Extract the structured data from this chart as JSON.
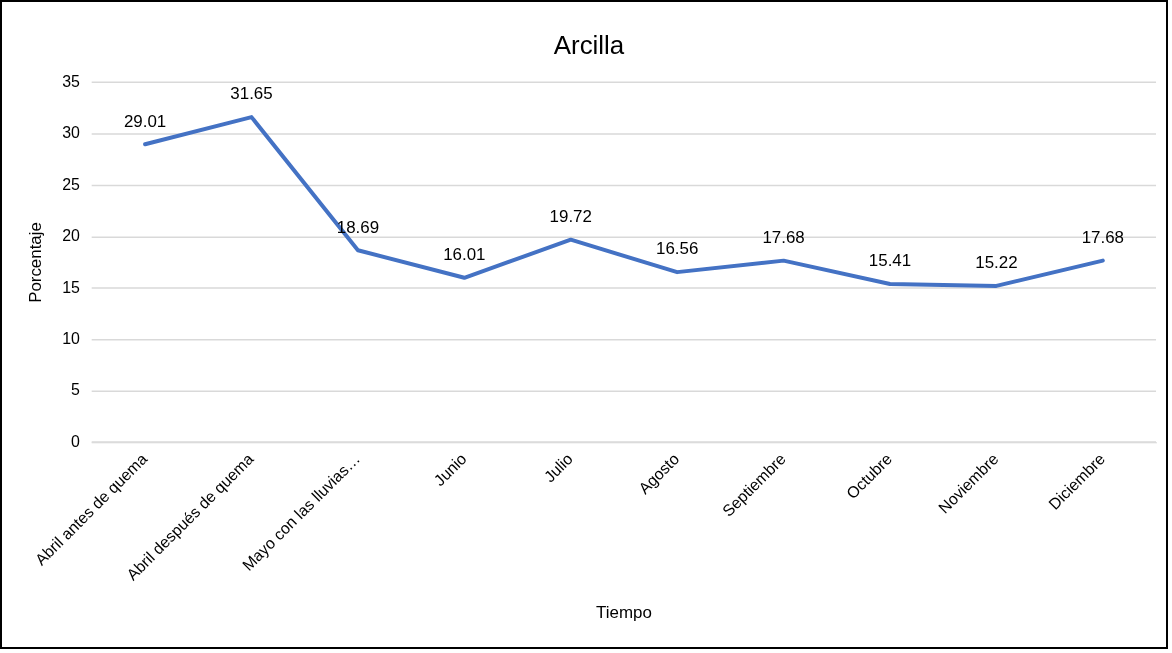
{
  "chart_data": {
    "type": "line",
    "title": "Arcilla",
    "xlabel": "Tiempo",
    "ylabel": "Porcentaje",
    "categories": [
      "Abril antes de quema",
      "Abril después de quema",
      "Mayo con las lluvias…",
      "Junio",
      "Julio",
      "Agosto",
      "Septiembre",
      "Octubre",
      "Noviembre",
      "Diciembre"
    ],
    "series": [
      {
        "color": "#4472c4",
        "values": [
          29.01,
          31.65,
          18.69,
          16.01,
          19.72,
          16.56,
          17.68,
          15.41,
          15.22,
          17.68
        ]
      }
    ],
    "ylim": [
      0,
      35
    ],
    "yticks": [
      0,
      5,
      10,
      15,
      20,
      25,
      30,
      35
    ],
    "grid": "y",
    "legend": false,
    "marker": "none",
    "line_style": "solid",
    "data_labels": true
  }
}
